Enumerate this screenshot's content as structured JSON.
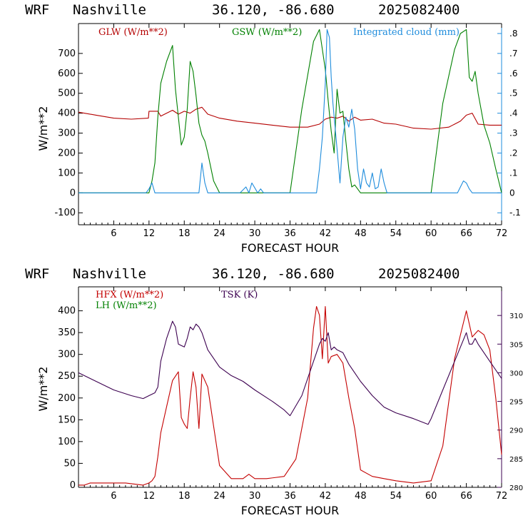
{
  "chart_data": [
    {
      "type": "line",
      "header": {
        "model": "WRF",
        "station": "Nashville",
        "coords": "36.120, -86.680",
        "init": "2025082400"
      },
      "xlabel": "FORECAST HOUR",
      "ylabel": "W/m**2",
      "xlim": [
        0,
        72
      ],
      "xticks": [
        "6",
        "12",
        "18",
        "24",
        "30",
        "36",
        "42",
        "48",
        "54",
        "60",
        "66",
        "72"
      ],
      "ylim": [
        -160,
        850
      ],
      "yticks": [
        "-100",
        "0",
        "100",
        "200",
        "300",
        "400",
        "500",
        "600",
        "700"
      ],
      "y2lim": [
        -0.16,
        0.85
      ],
      "y2ticks": [
        "-.1",
        "0",
        ".1",
        ".2",
        ".3",
        ".4",
        ".5",
        ".6",
        ".7",
        ".8"
      ],
      "grid": false,
      "legend_position": "top",
      "series": [
        {
          "name": "GLW (W/m**2)",
          "color": "#b40000",
          "axis": "left",
          "x": [
            0,
            3,
            6,
            9,
            11.9,
            12,
            13.5,
            14,
            15,
            16,
            17,
            18,
            19,
            20,
            21,
            22,
            24,
            27,
            30,
            33,
            36,
            39,
            41,
            42,
            43,
            44,
            45,
            46,
            47,
            48,
            50,
            52,
            54,
            57,
            60,
            63,
            65,
            66,
            67,
            68,
            70,
            72
          ],
          "values": [
            405,
            390,
            375,
            370,
            375,
            410,
            410,
            385,
            400,
            415,
            395,
            410,
            400,
            420,
            430,
            395,
            375,
            360,
            350,
            340,
            330,
            330,
            345,
            370,
            380,
            375,
            385,
            360,
            380,
            365,
            370,
            350,
            345,
            325,
            320,
            330,
            360,
            390,
            400,
            345,
            340,
            340
          ]
        },
        {
          "name": "GSW (W/m**2)",
          "color": "#008000",
          "axis": "left",
          "x": [
            0,
            12,
            12.5,
            13,
            13.5,
            14,
            15,
            16,
            16.5,
            17,
            17.5,
            18,
            18.5,
            19,
            19.5,
            20,
            20.5,
            21,
            21.5,
            22,
            23,
            24,
            36,
            38,
            40,
            41,
            42,
            42.5,
            43,
            43.5,
            44,
            44.5,
            45,
            45.5,
            46,
            46.5,
            47,
            48,
            60,
            62,
            64,
            65,
            66,
            66.5,
            67,
            67.5,
            68,
            69,
            70,
            71,
            72
          ],
          "values": [
            0,
            0,
            60,
            150,
            380,
            550,
            660,
            740,
            520,
            380,
            240,
            280,
            420,
            660,
            610,
            490,
            350,
            290,
            260,
            200,
            60,
            0,
            0,
            420,
            760,
            820,
            620,
            460,
            310,
            200,
            520,
            400,
            410,
            260,
            120,
            30,
            40,
            0,
            0,
            450,
            720,
            800,
            820,
            580,
            560,
            610,
            500,
            340,
            250,
            120,
            0
          ]
        },
        {
          "name": "Integrated cloud (mm)",
          "color": "#1e8cdc",
          "axis": "right",
          "x": [
            0,
            11.5,
            12,
            12.5,
            13,
            20.5,
            21,
            21.5,
            22,
            27.5,
            28.5,
            29,
            29.5,
            30.5,
            31,
            31.5,
            40.5,
            41,
            41.5,
            42,
            42.3,
            42.7,
            43,
            43.3,
            43.6,
            44,
            44.5,
            45,
            45.5,
            46,
            46.5,
            47,
            47.5,
            48,
            48.5,
            49,
            49.5,
            50,
            50.5,
            51,
            51.5,
            52,
            52.5,
            60,
            64.5,
            65,
            65.5,
            66,
            66.5,
            67,
            67.5,
            72
          ],
          "values": [
            0,
            0,
            0.02,
            0.05,
            0,
            0,
            0.15,
            0.05,
            0,
            0,
            0.03,
            0,
            0.05,
            0,
            0.02,
            0,
            0,
            0.12,
            0.28,
            0.55,
            0.82,
            0.78,
            0.58,
            0.45,
            0.35,
            0.22,
            0.05,
            0.28,
            0.38,
            0.33,
            0.42,
            0.32,
            0.12,
            0.02,
            0.12,
            0.05,
            0.03,
            0.1,
            0.02,
            0.03,
            0.12,
            0.05,
            0,
            0,
            0,
            0.03,
            0.06,
            0.05,
            0.02,
            0,
            0,
            0
          ]
        }
      ]
    },
    {
      "type": "line",
      "header": {
        "model": "WRF",
        "station": "Nashville",
        "coords": "36.120, -86.680",
        "init": "2025082400"
      },
      "xlabel": "FORECAST HOUR",
      "ylabel": "W/m**2",
      "xlim": [
        0,
        72
      ],
      "xticks": [
        "6",
        "12",
        "18",
        "24",
        "30",
        "36",
        "42",
        "48",
        "54",
        "60",
        "66",
        "72"
      ],
      "ylim": [
        -5,
        455
      ],
      "yticks": [
        "0",
        "50",
        "100",
        "150",
        "200",
        "250",
        "300",
        "350",
        "400"
      ],
      "y2lim": [
        280,
        315
      ],
      "y2ticks": [
        "280",
        "285",
        "290",
        "295",
        "300",
        "305",
        "310"
      ],
      "grid": false,
      "legend_position": "top",
      "series": [
        {
          "name": "HFX (W/m**2)",
          "color": "#c40000",
          "axis": "left",
          "x": [
            0,
            1,
            2,
            8,
            11,
            12,
            12.5,
            13,
            13.5,
            14,
            15,
            16,
            17,
            17.5,
            18,
            18.5,
            19,
            19.5,
            20,
            20.5,
            21,
            22,
            23,
            24,
            26,
            28,
            29,
            30,
            32,
            35,
            37,
            39,
            40,
            40.5,
            41,
            41.5,
            42,
            42.5,
            43,
            44,
            45,
            46,
            47,
            48,
            50,
            52,
            54,
            57,
            60,
            62,
            64,
            66,
            67,
            68,
            69,
            70,
            71,
            72
          ],
          "values": [
            0,
            0,
            5,
            5,
            0,
            5,
            10,
            20,
            65,
            120,
            180,
            240,
            260,
            155,
            140,
            130,
            200,
            260,
            225,
            130,
            255,
            225,
            135,
            45,
            15,
            15,
            25,
            15,
            15,
            20,
            60,
            200,
            360,
            410,
            390,
            290,
            410,
            280,
            295,
            300,
            280,
            200,
            130,
            35,
            20,
            15,
            10,
            5,
            10,
            90,
            290,
            400,
            340,
            355,
            345,
            310,
            200,
            70
          ]
        },
        {
          "name": "LH (W/m**2)",
          "color": "#008000",
          "axis": "left",
          "x": [],
          "values": []
        },
        {
          "name": "TSK (K)",
          "color": "#3c0050",
          "axis": "right",
          "x": [
            0,
            3,
            6,
            9,
            11,
            12,
            13,
            13.5,
            14,
            15,
            16,
            16.5,
            17,
            18,
            18.5,
            19,
            19.5,
            20,
            20.5,
            21,
            22,
            24,
            26,
            28,
            30,
            33,
            35,
            36,
            38,
            40,
            41,
            41.5,
            42,
            42.5,
            43,
            43.5,
            44,
            45,
            46,
            47,
            48,
            50,
            52,
            54,
            57,
            59.5,
            60,
            62,
            64,
            66,
            66.5,
            67,
            67.5,
            68,
            70,
            72
          ],
          "values": [
            300,
            298.5,
            297,
            296,
            295.5,
            296,
            296.5,
            297.5,
            302,
            306,
            309,
            308,
            305,
            304.5,
            306,
            308,
            307.5,
            308.5,
            308,
            307,
            304,
            301,
            299.5,
            298.5,
            297,
            295,
            293.5,
            292.5,
            296,
            302,
            305,
            306,
            305.5,
            307,
            304,
            304.5,
            304,
            303.5,
            301.5,
            300,
            298.5,
            296,
            294,
            293,
            292,
            291,
            292,
            297,
            302,
            307,
            305,
            305,
            306,
            305,
            302,
            299
          ]
        }
      ]
    }
  ]
}
